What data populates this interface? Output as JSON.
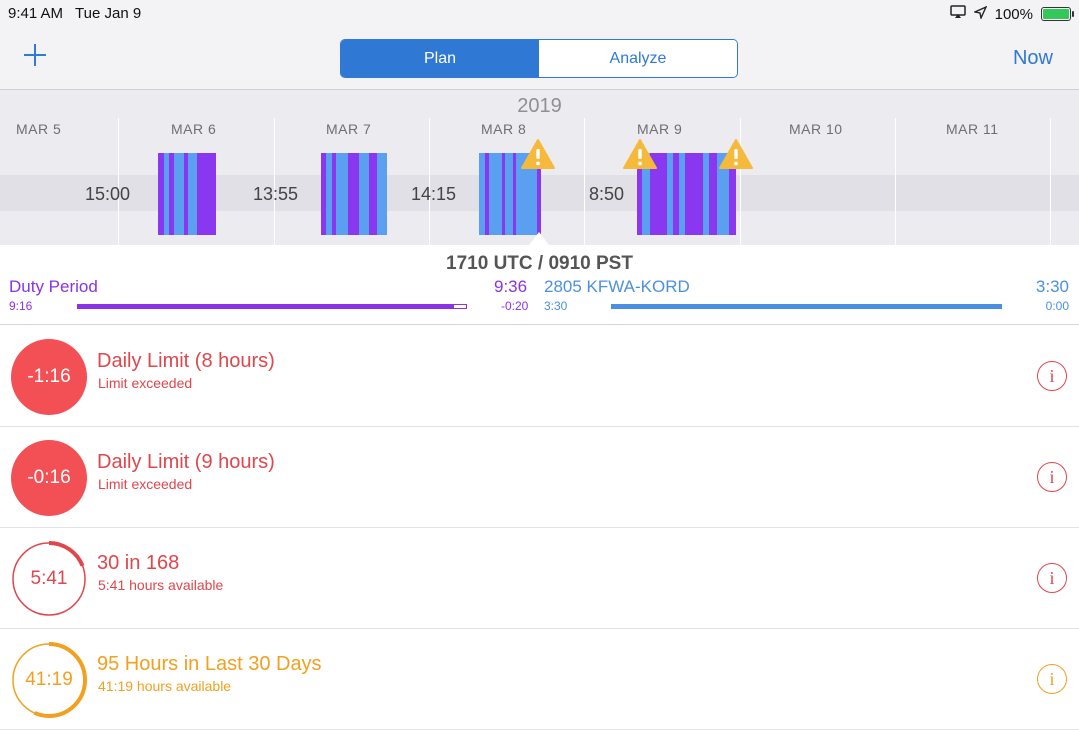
{
  "status_bar": {
    "time": "9:41 AM",
    "date": "Tue Jan 9",
    "battery": "100%"
  },
  "nav": {
    "segments": [
      "Plan",
      "Analyze"
    ],
    "now_label": "Now"
  },
  "timeline": {
    "year": "2019",
    "dates": [
      "MAR 5",
      "MAR 6",
      "MAR 7",
      "MAR 8",
      "MAR 9",
      "MAR 10",
      "MAR 11"
    ],
    "gaps": [
      "15:00",
      "13:55",
      "14:15",
      "8:50"
    ]
  },
  "summary": {
    "time_title": "1710 UTC / 0910 PST",
    "duty_label": "Duty Period",
    "duty_sub": "9:16",
    "duty_value": "9:36",
    "duty_value_sub": "-0:20",
    "duty_progress": 0.97,
    "flight_label": "2805 KFWA-KORD",
    "flight_sub": "3:30",
    "flight_value": "3:30",
    "flight_value_sub": "0:00"
  },
  "limits": [
    {
      "badge": "-1:16",
      "title": "Daily Limit (8 hours)",
      "sub": "Limit exceeded",
      "color": "#e0464c"
    },
    {
      "badge": "-0:16",
      "title": "Daily Limit (9 hours)",
      "sub": "Limit exceeded",
      "color": "#e0464c"
    },
    {
      "badge": "5:41",
      "title": "30 in 168",
      "sub": "5:41 hours available",
      "color": "#e0464c",
      "ring_progress": 0.19
    },
    {
      "badge": "41:19",
      "title": "95 Hours in Last 30 Days",
      "sub": "41:19 hours available",
      "color": "#f2a020",
      "ring_progress": 0.565
    }
  ],
  "info_label": "i"
}
